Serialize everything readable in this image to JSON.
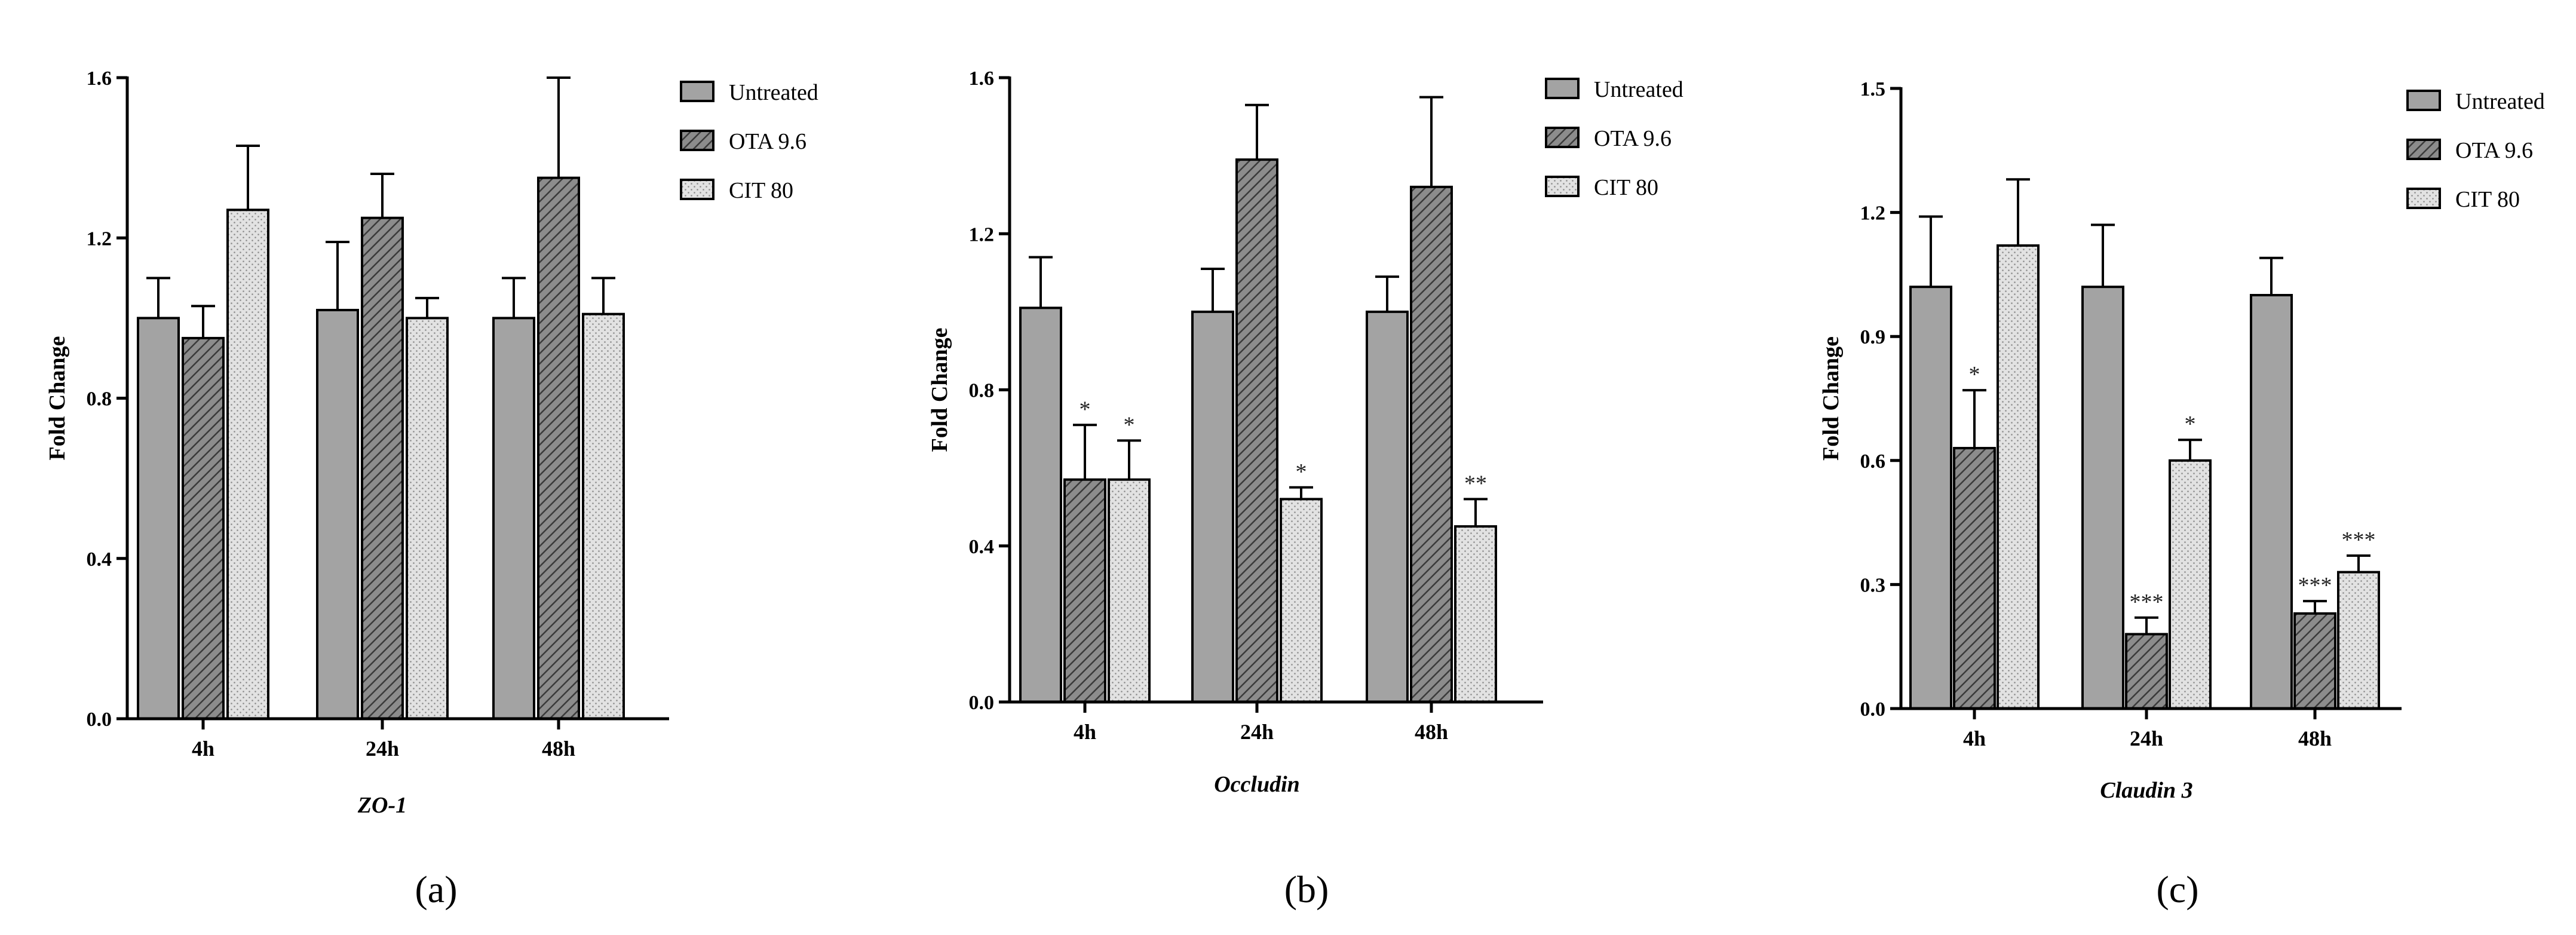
{
  "colors": {
    "untreated": "#a3a3a3",
    "ota": "#767676",
    "cit": "#dcdcdc",
    "axis": "#000000"
  },
  "legend": [
    "Untreated",
    "OTA 9.6",
    "CIT 80"
  ],
  "chart_data": [
    {
      "panel": "a",
      "panel_label": "(a)",
      "type": "bar",
      "title": "",
      "xlabel": "ZO-1",
      "ylabel": "Fold Change",
      "categories": [
        "4h",
        "24h",
        "48h"
      ],
      "ylim": [
        0,
        1.6
      ],
      "yticks": [
        0.0,
        0.4,
        0.8,
        1.2,
        1.6
      ],
      "ytick_labels": [
        "0.0",
        "0.4",
        "0.8",
        "1.2",
        "1.6"
      ],
      "series": [
        {
          "name": "Untreated",
          "values": [
            1.0,
            1.02,
            1.0
          ],
          "errors": [
            0.1,
            0.17,
            0.1
          ],
          "annotations": [
            "",
            "",
            ""
          ]
        },
        {
          "name": "OTA 9.6",
          "values": [
            0.95,
            1.25,
            1.35
          ],
          "errors": [
            0.08,
            0.11,
            0.25
          ],
          "annotations": [
            "",
            "",
            ""
          ]
        },
        {
          "name": "CIT 80",
          "values": [
            1.27,
            1.0,
            1.01
          ],
          "errors": [
            0.16,
            0.05,
            0.09
          ],
          "annotations": [
            "",
            "",
            ""
          ]
        }
      ]
    },
    {
      "panel": "b",
      "panel_label": "(b)",
      "type": "bar",
      "title": "",
      "xlabel": "Occludin",
      "ylabel": "Fold Change",
      "categories": [
        "4h",
        "24h",
        "48h"
      ],
      "ylim": [
        0,
        1.6
      ],
      "yticks": [
        0.0,
        0.4,
        0.8,
        1.2,
        1.6
      ],
      "ytick_labels": [
        "0.0",
        "0.4",
        "0.8",
        "1.2",
        "1.6"
      ],
      "series": [
        {
          "name": "Untreated",
          "values": [
            1.01,
            1.0,
            1.0
          ],
          "errors": [
            0.13,
            0.11,
            0.09
          ],
          "annotations": [
            "",
            "",
            ""
          ]
        },
        {
          "name": "OTA 9.6",
          "values": [
            0.57,
            1.39,
            1.32
          ],
          "errors": [
            0.14,
            0.14,
            0.23
          ],
          "annotations": [
            "*",
            "",
            ""
          ]
        },
        {
          "name": "CIT 80",
          "values": [
            0.57,
            0.52,
            0.45
          ],
          "errors": [
            0.1,
            0.03,
            0.07
          ],
          "annotations": [
            "*",
            "*",
            "**"
          ]
        }
      ]
    },
    {
      "panel": "c",
      "panel_label": "(c)",
      "type": "bar",
      "title": "",
      "xlabel": "Claudin 3",
      "ylabel": "Fold Change",
      "categories": [
        "4h",
        "24h",
        "48h"
      ],
      "ylim": [
        0,
        1.5
      ],
      "yticks": [
        0.0,
        0.3,
        0.6,
        0.9,
        1.2,
        1.5
      ],
      "ytick_labels": [
        "0.0",
        "0.3",
        "0.6",
        "0.9",
        "1.2",
        "1.5"
      ],
      "series": [
        {
          "name": "Untreated",
          "values": [
            1.02,
            1.02,
            1.0
          ],
          "errors": [
            0.17,
            0.15,
            0.09
          ],
          "annotations": [
            "",
            "",
            ""
          ]
        },
        {
          "name": "OTA 9.6",
          "values": [
            0.63,
            0.18,
            0.23
          ],
          "errors": [
            0.14,
            0.04,
            0.03
          ],
          "annotations": [
            "*",
            "***",
            "***"
          ]
        },
        {
          "name": "CIT 80",
          "values": [
            1.12,
            0.6,
            0.33
          ],
          "errors": [
            0.16,
            0.05,
            0.04
          ],
          "annotations": [
            "",
            "*",
            "***"
          ]
        }
      ]
    }
  ]
}
